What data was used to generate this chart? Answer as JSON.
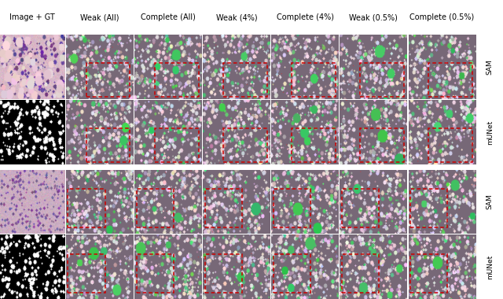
{
  "col_headers": [
    "Image + GT",
    "Weak (All)",
    "Complete (All)",
    "Weak (4%)",
    "Complete (4%)",
    "Weak (0.5%)",
    "Complete (0.5%)"
  ],
  "row_headers": [
    "SAM",
    "mUNet",
    "SAM",
    "mUNet"
  ],
  "col_header_bg_colors": [
    "#fbecd8",
    "#cfe0f5",
    "#cfe0f5",
    "#d9f0db",
    "#d9f0db",
    "#d6f0ee",
    "#d6f0ee"
  ],
  "row_header_bg_color": "#e8e0f0",
  "figsize": [
    6.4,
    3.8
  ],
  "dpi": 100,
  "red_box_color": "#cc0000",
  "header_fontsize": 7.0,
  "row_label_fontsize": 6.5
}
